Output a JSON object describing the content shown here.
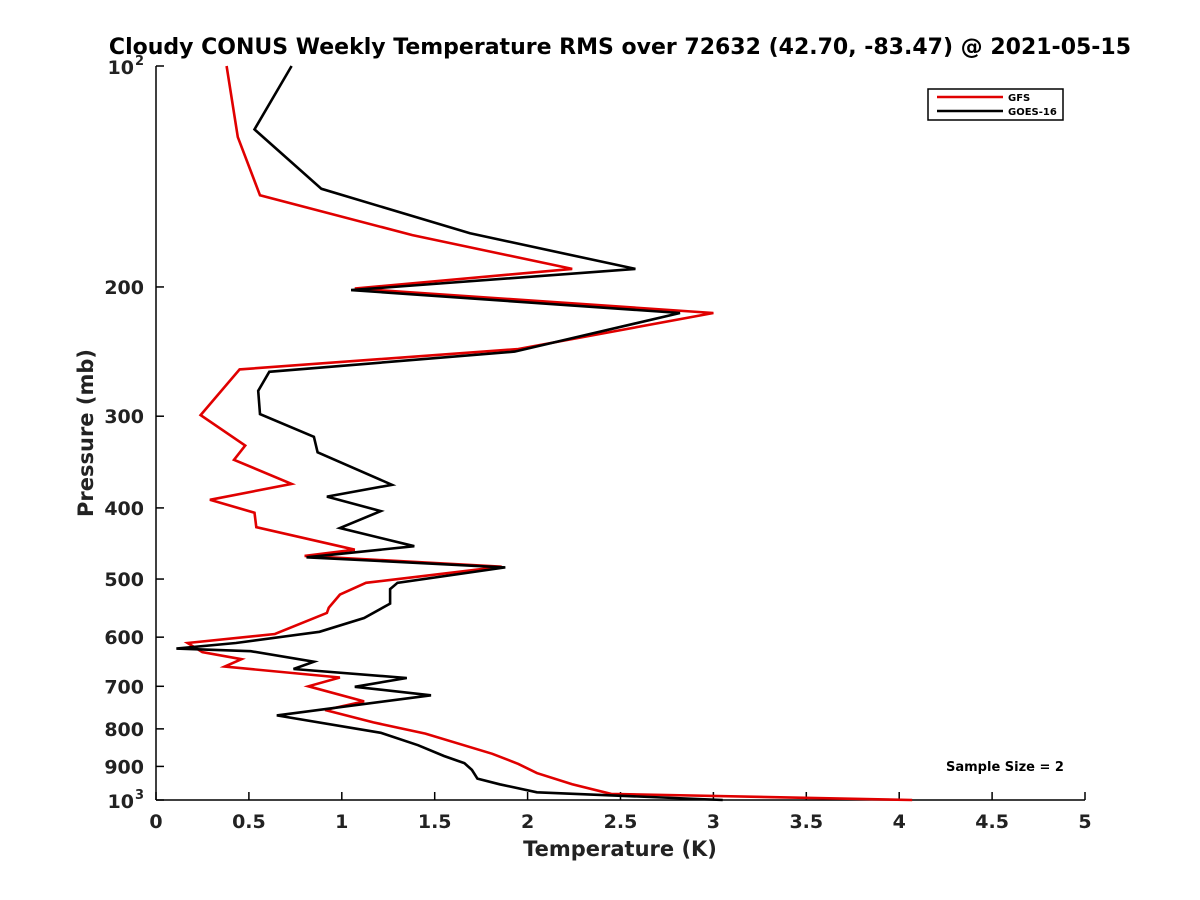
{
  "chart_data": {
    "type": "line",
    "title": "Cloudy CONUS Weekly Temperature RMS over 72632 (42.70, -83.47) @ 2021-05-15",
    "xlabel": "Temperature (K)",
    "ylabel": "Pressure (mb)",
    "xlim": [
      0,
      5
    ],
    "ylim": [
      100,
      1000
    ],
    "y_scale": "log",
    "y_reversed": true,
    "grid": false,
    "legend_position": "top-right",
    "x_ticks": [
      "0",
      "0.5",
      "1",
      "1.5",
      "2",
      "2.5",
      "3",
      "3.5",
      "4",
      "4.5",
      "5"
    ],
    "y_ticks": [
      {
        "value": 100,
        "base": "10",
        "exp": "2"
      },
      {
        "value": 200,
        "label": "200"
      },
      {
        "value": 300,
        "label": "300"
      },
      {
        "value": 400,
        "label": "400"
      },
      {
        "value": 500,
        "label": "500"
      },
      {
        "value": 600,
        "label": "600"
      },
      {
        "value": 700,
        "label": "700"
      },
      {
        "value": 800,
        "label": "800"
      },
      {
        "value": 900,
        "label": "900"
      },
      {
        "value": 1000,
        "base": "10",
        "exp": "3"
      }
    ],
    "annotation": "Sample Size = 2",
    "series": [
      {
        "name": "GFS",
        "color": "#e00000",
        "points": [
          [
            0.38,
            100
          ],
          [
            0.44,
            125
          ],
          [
            0.56,
            150
          ],
          [
            1.38,
            170
          ],
          [
            2.24,
            189
          ],
          [
            1.07,
            201
          ],
          [
            3.0,
            217
          ],
          [
            1.95,
            243
          ],
          [
            0.45,
            259
          ],
          [
            0.24,
            299
          ],
          [
            0.48,
            329
          ],
          [
            0.42,
            344
          ],
          [
            0.73,
            371
          ],
          [
            0.29,
            390
          ],
          [
            0.53,
            406
          ],
          [
            0.54,
            425
          ],
          [
            1.07,
            456
          ],
          [
            0.8,
            465
          ],
          [
            1.86,
            481
          ],
          [
            1.13,
            506
          ],
          [
            0.99,
            525
          ],
          [
            0.93,
            547
          ],
          [
            0.92,
            556
          ],
          [
            0.64,
            594
          ],
          [
            0.17,
            611
          ],
          [
            0.25,
            629
          ],
          [
            0.46,
            643
          ],
          [
            0.37,
            658
          ],
          [
            0.99,
            681
          ],
          [
            0.82,
            700
          ],
          [
            1.12,
            734
          ],
          [
            0.91,
            754
          ],
          [
            1.17,
            784
          ],
          [
            1.45,
            812
          ],
          [
            1.81,
            865
          ],
          [
            1.95,
            893
          ],
          [
            2.05,
            919
          ],
          [
            2.24,
            952
          ],
          [
            2.45,
            981
          ],
          [
            4.07,
            1000
          ]
        ]
      },
      {
        "name": "GOES-16",
        "color": "#000000",
        "points": [
          [
            0.73,
            100
          ],
          [
            0.53,
            122
          ],
          [
            0.89,
            147
          ],
          [
            1.69,
            169
          ],
          [
            2.58,
            189
          ],
          [
            1.05,
            202
          ],
          [
            2.82,
            217
          ],
          [
            1.93,
            245
          ],
          [
            0.61,
            261
          ],
          [
            0.55,
            277
          ],
          [
            0.56,
            298
          ],
          [
            0.85,
            320
          ],
          [
            0.87,
            336
          ],
          [
            1.27,
            372
          ],
          [
            0.92,
            386
          ],
          [
            1.21,
            404
          ],
          [
            0.99,
            426
          ],
          [
            1.39,
            451
          ],
          [
            0.81,
            467
          ],
          [
            1.88,
            482
          ],
          [
            1.3,
            506
          ],
          [
            1.26,
            516
          ],
          [
            1.26,
            540
          ],
          [
            1.12,
            565
          ],
          [
            0.88,
            590
          ],
          [
            0.43,
            611
          ],
          [
            0.11,
            622
          ],
          [
            0.51,
            627
          ],
          [
            0.85,
            648
          ],
          [
            0.74,
            663
          ],
          [
            1.35,
            682
          ],
          [
            1.07,
            701
          ],
          [
            1.48,
            720
          ],
          [
            0.65,
            767
          ],
          [
            1.21,
            810
          ],
          [
            1.41,
            842
          ],
          [
            1.55,
            871
          ],
          [
            1.66,
            891
          ],
          [
            1.7,
            910
          ],
          [
            1.73,
            935
          ],
          [
            1.85,
            952
          ],
          [
            2.05,
            976
          ],
          [
            3.05,
            1000
          ]
        ]
      }
    ]
  }
}
